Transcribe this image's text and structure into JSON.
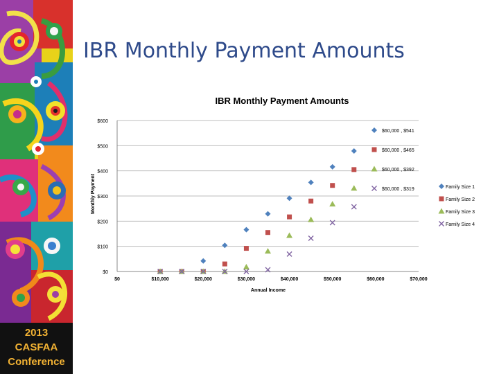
{
  "slide": {
    "title": "IBR Monthly Payment Amounts",
    "conference": {
      "line1": "2013",
      "line2": "CASFAA",
      "line3": "Conference"
    }
  },
  "colors": {
    "title": "#2e4a8a",
    "series": [
      "#4f81bd",
      "#c0504d",
      "#9bbb59",
      "#8064a2"
    ],
    "conference_text": "#f2b233"
  },
  "chart_data": {
    "type": "scatter",
    "title": "IBR Monthly Payment Amounts",
    "xlabel": "Annual Income",
    "ylabel": "Monthly Payment",
    "xlim": [
      0,
      70000
    ],
    "ylim": [
      0,
      600
    ],
    "x_ticks": [
      "$0",
      "$10,000",
      "$20,000",
      "$30,000",
      "$40,000",
      "$50,000",
      "$60,000",
      "$70,000"
    ],
    "y_ticks": [
      "$0",
      "$100",
      "$200",
      "$300",
      "$400",
      "$500",
      "$600"
    ],
    "grid": "horizontal",
    "legend": "right",
    "series": [
      {
        "name": "Family Size 1",
        "marker": "diamond",
        "x": [
          10000,
          15000,
          20000,
          25000,
          30000,
          35000,
          40000,
          45000,
          50000,
          55000
        ],
        "y": [
          0,
          0,
          42,
          104,
          166,
          229,
          291,
          354,
          416,
          479
        ]
      },
      {
        "name": "Family Size 2",
        "marker": "square",
        "x": [
          10000,
          15000,
          20000,
          25000,
          30000,
          35000,
          40000,
          45000,
          50000,
          55000
        ],
        "y": [
          0,
          0,
          0,
          30,
          92,
          155,
          217,
          280,
          342,
          405
        ]
      },
      {
        "name": "Family Size 3",
        "marker": "triangle",
        "x": [
          10000,
          15000,
          20000,
          25000,
          30000,
          35000,
          40000,
          45000,
          50000,
          55000
        ],
        "y": [
          0,
          0,
          0,
          0,
          18,
          81,
          143,
          206,
          268,
          331
        ]
      },
      {
        "name": "Family Size 4",
        "marker": "x",
        "x": [
          10000,
          15000,
          20000,
          25000,
          30000,
          35000,
          40000,
          45000,
          50000,
          55000
        ],
        "y": [
          0,
          0,
          0,
          0,
          0,
          7,
          69,
          132,
          194,
          257
        ]
      }
    ],
    "annotations": [
      "$60,000 , $541",
      "$60,000 , $465",
      "$60,000 , $392",
      "$60,000 , $319"
    ]
  }
}
